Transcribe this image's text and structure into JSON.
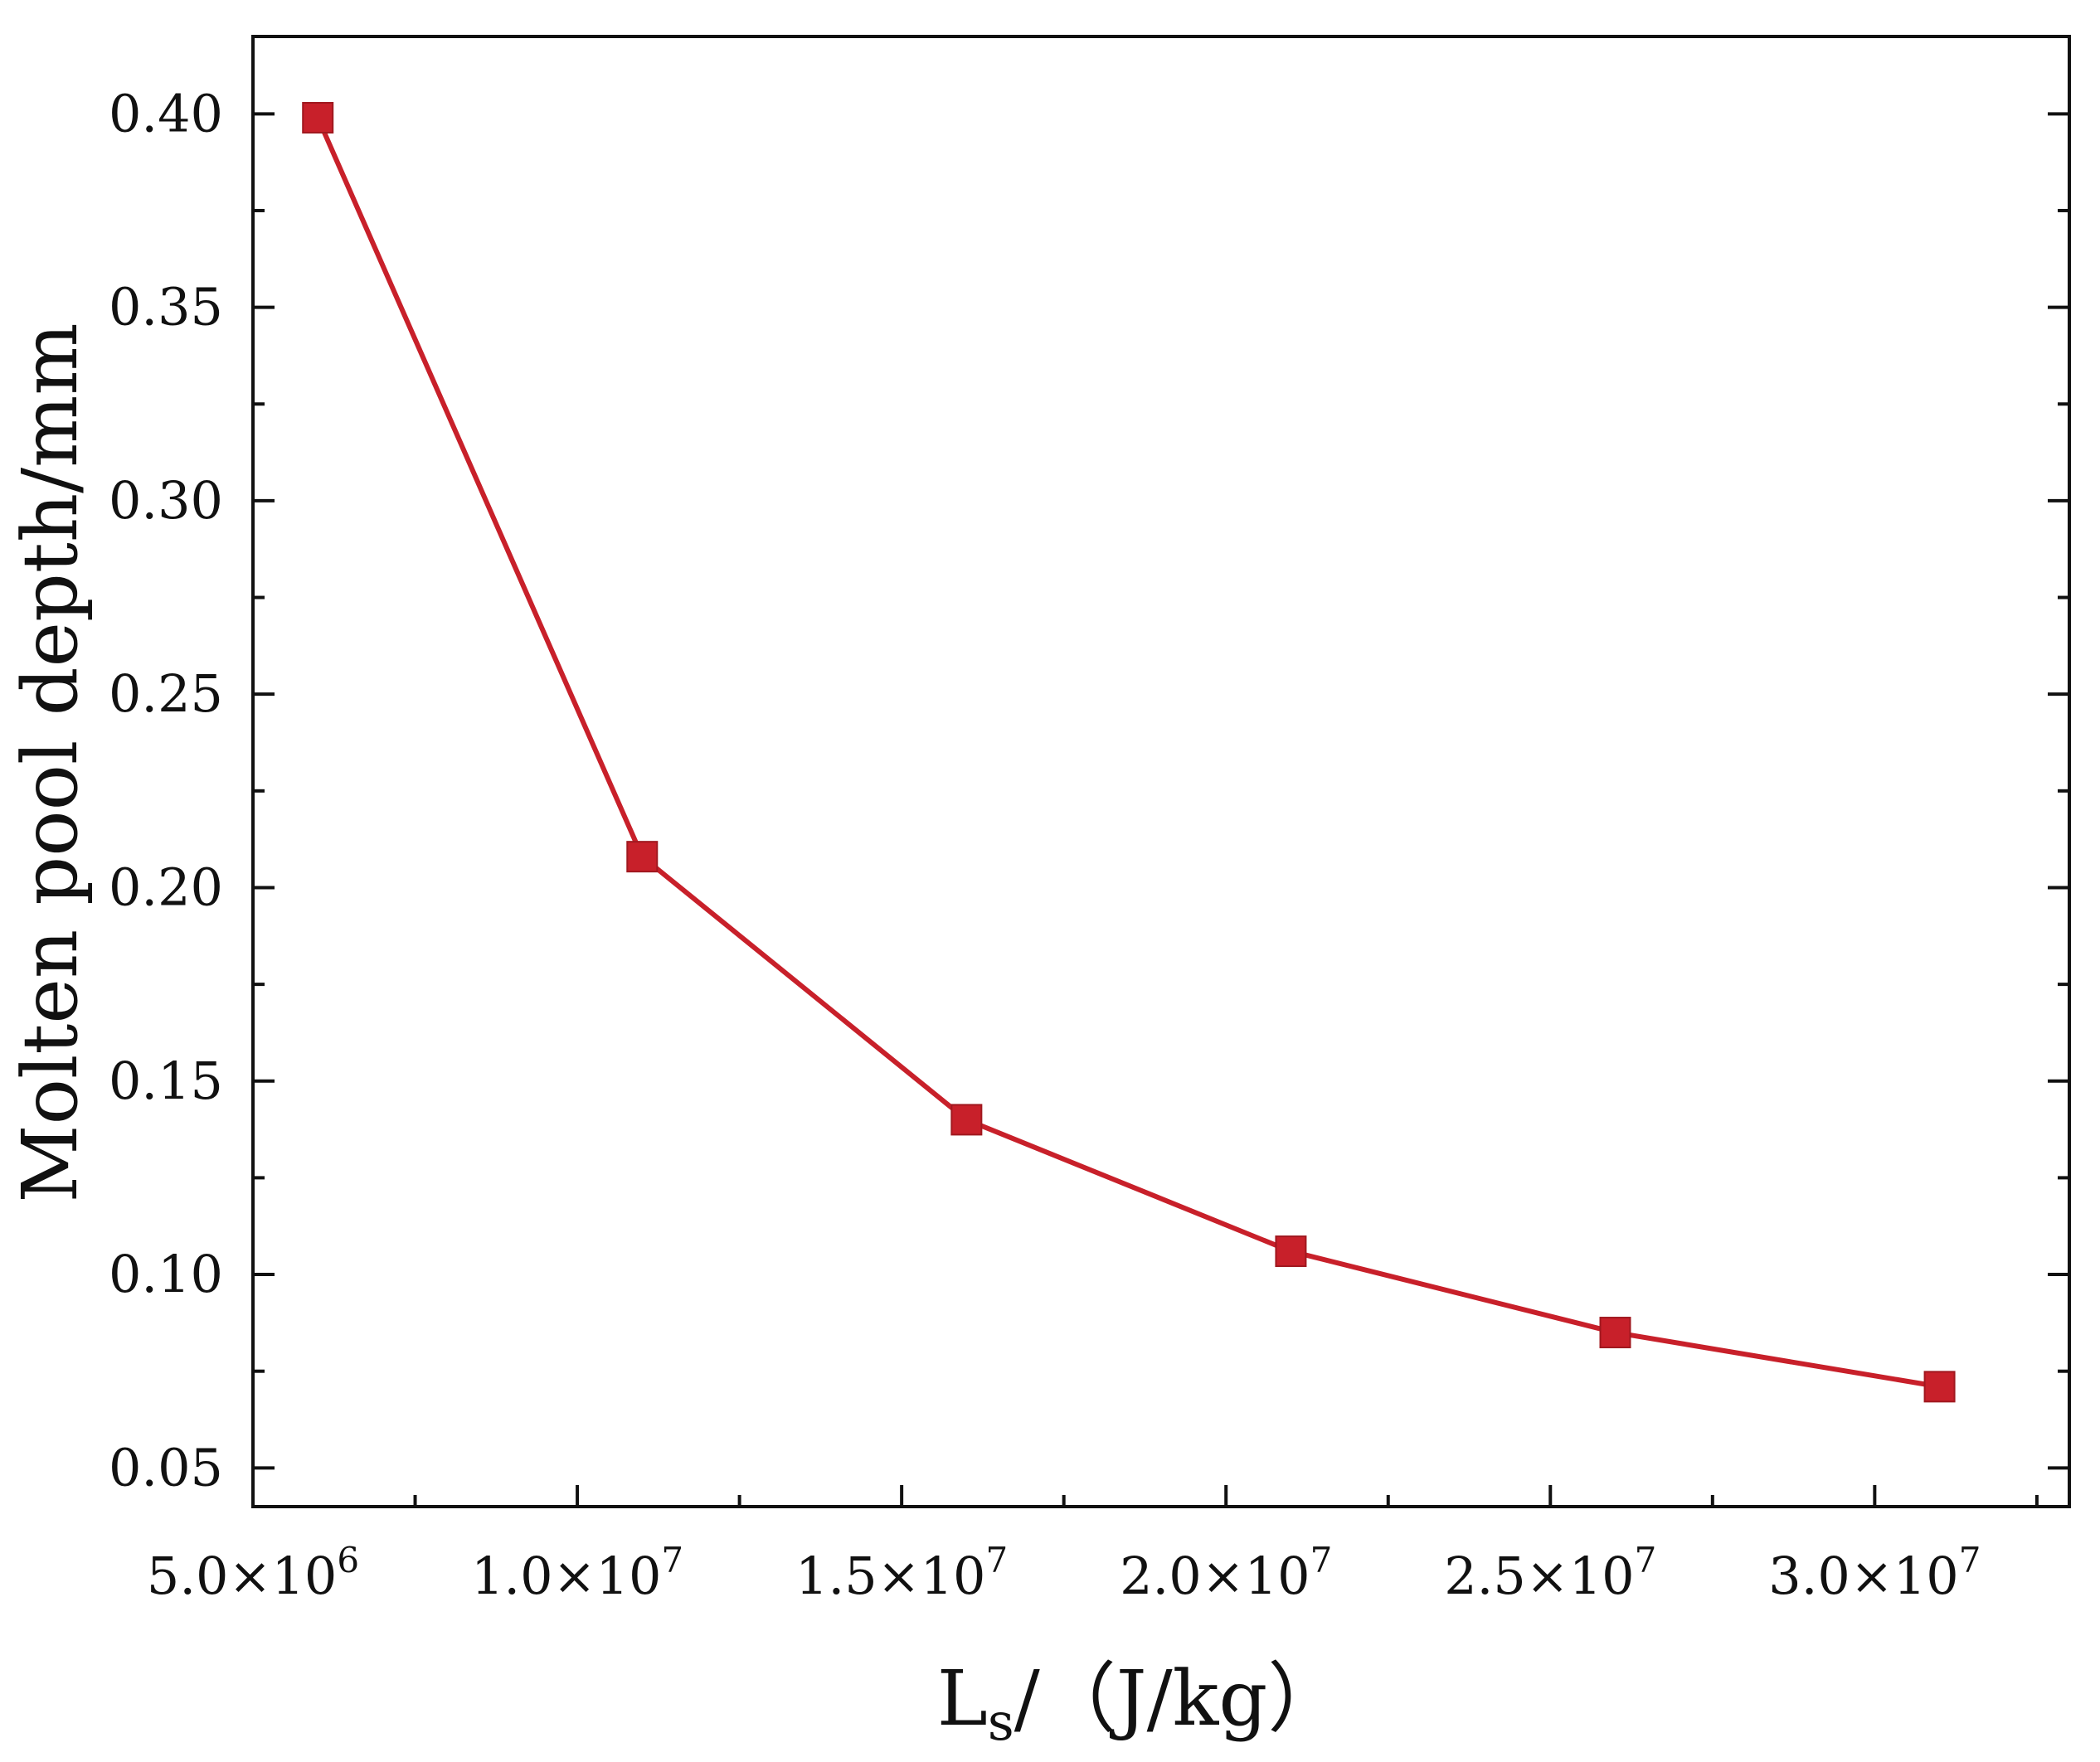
{
  "chart_data": {
    "type": "line",
    "title": "",
    "xlabel": "Ls/（J/kg）",
    "xlabel_parts": {
      "main": "L",
      "sub": "s",
      "rest": "/（J/kg）"
    },
    "ylabel": "Molten pool depth/mm",
    "xlim": [
      5000000,
      33000000
    ],
    "ylim": [
      0.04,
      0.42
    ],
    "x_ticks": [
      {
        "value": 5000000,
        "mantissa": "5.0×10",
        "exponent": "6"
      },
      {
        "value": 10000000,
        "mantissa": "1.0×10",
        "exponent": "7"
      },
      {
        "value": 15000000,
        "mantissa": "1.5×10",
        "exponent": "7"
      },
      {
        "value": 20000000,
        "mantissa": "2.0×10",
        "exponent": "7"
      },
      {
        "value": 25000000,
        "mantissa": "2.5×10",
        "exponent": "7"
      },
      {
        "value": 30000000,
        "mantissa": "3.0×10",
        "exponent": "7"
      }
    ],
    "y_ticks": [
      {
        "value": 0.05,
        "label": "0.05"
      },
      {
        "value": 0.1,
        "label": "0.10"
      },
      {
        "value": 0.15,
        "label": "0.15"
      },
      {
        "value": 0.2,
        "label": "0.20"
      },
      {
        "value": 0.25,
        "label": "0.25"
      },
      {
        "value": 0.3,
        "label": "0.30"
      },
      {
        "value": 0.35,
        "label": "0.35"
      },
      {
        "value": 0.4,
        "label": "0.40"
      }
    ],
    "grid": false,
    "series": [
      {
        "color": "#c8202a",
        "marker": "square",
        "x": [
          6000000,
          11000000,
          16000000,
          21000000,
          26000000,
          31000000
        ],
        "y": [
          0.399,
          0.208,
          0.14,
          0.106,
          0.085,
          0.071
        ]
      }
    ]
  }
}
